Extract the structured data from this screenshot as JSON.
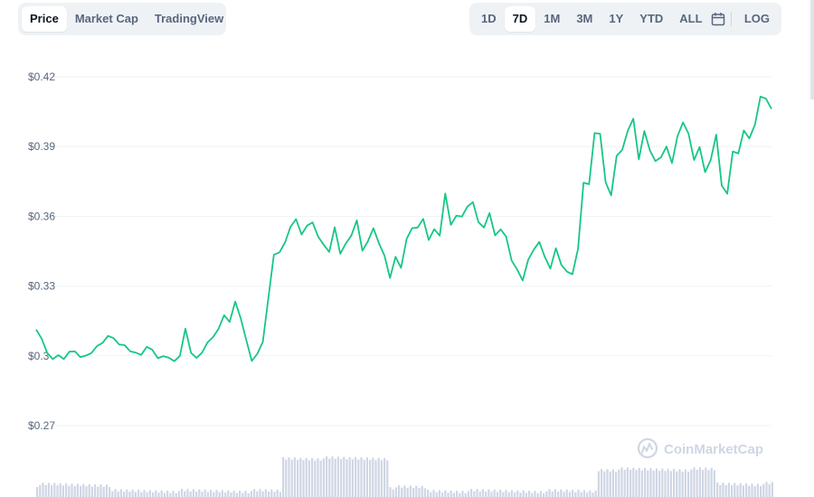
{
  "toolbar": {
    "left_tabs": [
      {
        "label": "Price",
        "active": true
      },
      {
        "label": "Market Cap",
        "active": false
      },
      {
        "label": "TradingView",
        "active": false
      }
    ],
    "ranges": [
      {
        "label": "1D",
        "active": false
      },
      {
        "label": "7D",
        "active": true
      },
      {
        "label": "1M",
        "active": false
      },
      {
        "label": "3M",
        "active": false
      },
      {
        "label": "1Y",
        "active": false
      },
      {
        "label": "YTD",
        "active": false
      },
      {
        "label": "ALL",
        "active": false
      }
    ],
    "calendar_icon": "calendar-icon",
    "log_label": "LOG"
  },
  "watermark": {
    "text": "CoinMarketCap",
    "icon": "coinmarketcap-logo-icon"
  },
  "colors": {
    "line": "#16c784",
    "grid": "#eff2f5",
    "axis_text": "#58667e",
    "volume": "#cfd6e4"
  },
  "chart_data": {
    "type": "line",
    "title": "",
    "xlabel": "",
    "ylabel": "",
    "y_ticks": [
      "$0.42",
      "$0.39",
      "$0.36",
      "$0.33",
      "$0.3",
      "$0.27"
    ],
    "y_tick_values": [
      0.42,
      0.39,
      0.36,
      0.33,
      0.3,
      0.27
    ],
    "ylim": [
      0.27,
      0.42
    ],
    "grid": true,
    "series": [
      {
        "values": [
          0.3113,
          0.3074,
          0.3013,
          0.2986,
          0.3003,
          0.2986,
          0.3018,
          0.3019,
          0.2994,
          0.3001,
          0.3012,
          0.3042,
          0.3056,
          0.3086,
          0.3076,
          0.3049,
          0.3046,
          0.302,
          0.3014,
          0.3004,
          0.3039,
          0.3026,
          0.299,
          0.2999,
          0.2992,
          0.2977,
          0.3,
          0.3117,
          0.3013,
          0.2991,
          0.3014,
          0.3058,
          0.3081,
          0.3117,
          0.3175,
          0.3146,
          0.3233,
          0.3161,
          0.3068,
          0.2978,
          0.3009,
          0.306,
          0.3248,
          0.3435,
          0.3445,
          0.3487,
          0.3555,
          0.3588,
          0.3522,
          0.356,
          0.3574,
          0.3512,
          0.3478,
          0.3447,
          0.3553,
          0.3439,
          0.3483,
          0.3517,
          0.3583,
          0.3452,
          0.3493,
          0.3549,
          0.3484,
          0.3431,
          0.3335,
          0.3426,
          0.3378,
          0.3503,
          0.3549,
          0.3552,
          0.3589,
          0.3498,
          0.3545,
          0.3517,
          0.3698,
          0.3563,
          0.3603,
          0.3599,
          0.3642,
          0.3661,
          0.3575,
          0.3552,
          0.3614,
          0.3518,
          0.3544,
          0.3513,
          0.341,
          0.3371,
          0.3324,
          0.3413,
          0.3457,
          0.349,
          0.3425,
          0.3375,
          0.3463,
          0.3391,
          0.3362,
          0.3351,
          0.346,
          0.3745,
          0.3738,
          0.3958,
          0.3955,
          0.3747,
          0.369,
          0.386,
          0.3886,
          0.3968,
          0.402,
          0.3845,
          0.3967,
          0.3884,
          0.3838,
          0.3853,
          0.39,
          0.3829,
          0.3945,
          0.4004,
          0.3955,
          0.3842,
          0.3898,
          0.379,
          0.3842,
          0.3951,
          0.3732,
          0.3697,
          0.3879,
          0.387,
          0.3969,
          0.3935,
          0.3994,
          0.4115,
          0.4106,
          0.4062
        ]
      }
    ]
  }
}
